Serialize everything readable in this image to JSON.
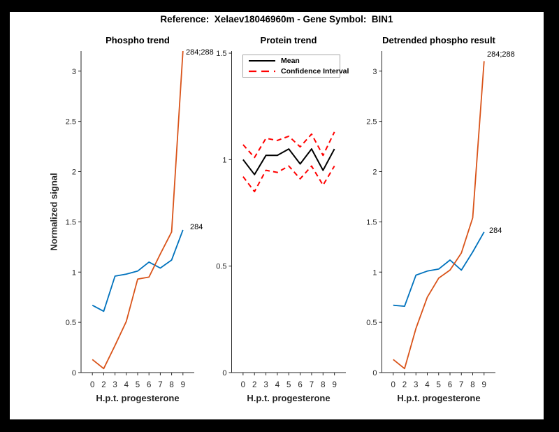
{
  "figure": {
    "title": "Reference:  Xelaev18046960m - Gene Symbol:  BIN1",
    "background": "#ffffff",
    "frame_color": "#000000"
  },
  "colors": {
    "blue": "#0072BD",
    "orange": "#D95319",
    "red": "#FF0000",
    "black": "#000000",
    "axis": "#262626"
  },
  "axis_labels": {
    "x": "H.p.t. progesterone",
    "y": "Normalized signal"
  },
  "legend": {
    "mean_label": "Mean",
    "ci_label": "Confidence Interval"
  },
  "annotations": {
    "phospho_orange_end": "284;288",
    "phospho_blue_end": "284",
    "detrended_orange_end": "284;288",
    "detrended_blue_end": "284"
  },
  "chart_data": [
    {
      "type": "line",
      "title": "Phospho trend",
      "xlabel": "H.p.t. progesterone",
      "ylabel": "Normalized signal",
      "categories": [
        "0",
        "2",
        "3",
        "4",
        "5",
        "6",
        "7",
        "8",
        "9"
      ],
      "ylim": [
        0,
        3.2
      ],
      "yticks": [
        0,
        0.5,
        1,
        1.5,
        2,
        2.5,
        3
      ],
      "ytick_labels": [
        "0",
        "0.5",
        "1",
        "1.5",
        "2",
        "2.5",
        "3"
      ],
      "grid": false,
      "series": [
        {
          "name": "284",
          "color": "blue",
          "style": "solid",
          "width": 1.8,
          "values": [
            0.67,
            0.61,
            0.96,
            0.98,
            1.01,
            1.1,
            1.04,
            1.12,
            1.42
          ]
        },
        {
          "name": "284;288",
          "color": "orange",
          "style": "solid",
          "width": 1.8,
          "values": [
            0.13,
            0.04,
            0.27,
            0.51,
            0.93,
            0.95,
            1.18,
            1.4,
            3.2
          ]
        }
      ]
    },
    {
      "type": "line",
      "title": "Protein trend",
      "xlabel": "H.p.t. progesterone",
      "ylabel": "",
      "categories": [
        "0",
        "2",
        "3",
        "4",
        "5",
        "6",
        "7",
        "8",
        "9"
      ],
      "ylim": [
        0,
        1.51
      ],
      "yticks": [
        0,
        0.5,
        1,
        1.5
      ],
      "ytick_labels": [
        "0",
        "0.5",
        "1",
        "1.5"
      ],
      "grid": false,
      "legend_position": "northwest",
      "series": [
        {
          "name": "Confidence Interval",
          "color": "red",
          "style": "dashed",
          "width": 2,
          "values": [
            1.07,
            1.01,
            1.1,
            1.09,
            1.11,
            1.06,
            1.12,
            1.02,
            1.13
          ]
        },
        {
          "name": "Confidence Interval",
          "color": "red",
          "style": "dashed",
          "width": 2,
          "values": [
            0.92,
            0.85,
            0.95,
            0.94,
            0.97,
            0.91,
            0.97,
            0.88,
            0.97
          ]
        },
        {
          "name": "Mean",
          "color": "black",
          "style": "solid",
          "width": 2,
          "values": [
            1.0,
            0.93,
            1.02,
            1.02,
            1.05,
            0.98,
            1.05,
            0.95,
            1.05
          ]
        }
      ]
    },
    {
      "type": "line",
      "title": "Detrended phospho result",
      "xlabel": "H.p.t. progesterone",
      "ylabel": "",
      "categories": [
        "0",
        "2",
        "3",
        "4",
        "5",
        "6",
        "7",
        "8",
        "9"
      ],
      "ylim": [
        0,
        3.2
      ],
      "yticks": [
        0,
        0.5,
        1,
        1.5,
        2,
        2.5,
        3
      ],
      "ytick_labels": [
        "0",
        "0.5",
        "1",
        "1.5",
        "2",
        "2.5",
        "3"
      ],
      "grid": false,
      "series": [
        {
          "name": "284",
          "color": "blue",
          "style": "solid",
          "width": 1.8,
          "values": [
            0.67,
            0.66,
            0.97,
            1.01,
            1.03,
            1.12,
            1.02,
            1.2,
            1.4
          ]
        },
        {
          "name": "284;288",
          "color": "orange",
          "style": "solid",
          "width": 1.8,
          "values": [
            0.13,
            0.04,
            0.44,
            0.75,
            0.94,
            1.02,
            1.19,
            1.54,
            3.1
          ]
        }
      ]
    }
  ]
}
